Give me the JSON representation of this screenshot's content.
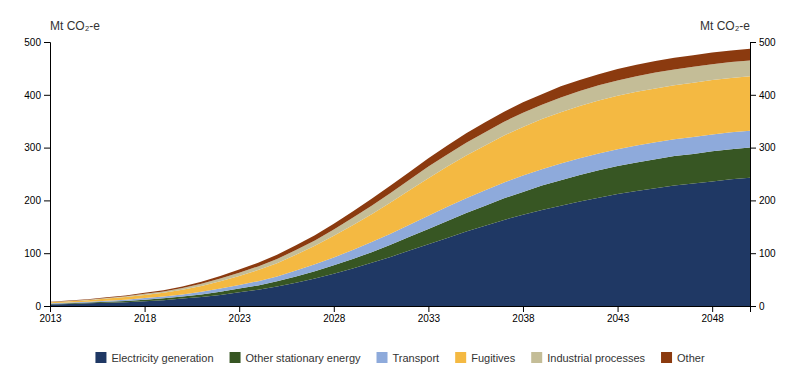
{
  "chart_data": {
    "type": "area",
    "stacked": true,
    "x": [
      2013,
      2014,
      2015,
      2016,
      2017,
      2018,
      2019,
      2020,
      2021,
      2022,
      2023,
      2024,
      2025,
      2026,
      2027,
      2028,
      2029,
      2030,
      2031,
      2032,
      2033,
      2034,
      2035,
      2036,
      2037,
      2038,
      2039,
      2040,
      2041,
      2042,
      2043,
      2044,
      2045,
      2046,
      2047,
      2048,
      2049,
      2050
    ],
    "series": [
      {
        "name": "Electricity generation",
        "color": "#1f3864",
        "values": [
          3,
          4,
          5,
          6,
          7,
          9,
          11,
          14,
          17,
          21,
          26,
          31,
          37,
          44,
          52,
          61,
          71,
          82,
          93,
          105,
          117,
          129,
          141,
          152,
          163,
          173,
          182,
          190,
          198,
          205,
          212,
          218,
          223,
          228,
          232,
          236,
          240,
          243
        ]
      },
      {
        "name": "Other stationary energy",
        "color": "#375623",
        "values": [
          1,
          1.2,
          1.5,
          2,
          2.5,
          3,
          3.5,
          4,
          5,
          6,
          7,
          8,
          10,
          12,
          14,
          16,
          18,
          20,
          23,
          26,
          29,
          32,
          35,
          38,
          41,
          43,
          46,
          48,
          50,
          52,
          53,
          54,
          55,
          56,
          56,
          57,
          57,
          57
        ]
      },
      {
        "name": "Transport",
        "color": "#8eaadb",
        "values": [
          1,
          1.2,
          1.5,
          2,
          2.5,
          3,
          3.5,
          4,
          5,
          6,
          7,
          8,
          9,
          11,
          13,
          15,
          17,
          19,
          21,
          23,
          25,
          27,
          28,
          29,
          30,
          31,
          31,
          32,
          32,
          32,
          32,
          32,
          32,
          32,
          32,
          32,
          32,
          32
        ]
      },
      {
        "name": "Fugitives",
        "color": "#f4b942",
        "values": [
          2,
          2.5,
          3,
          4,
          5,
          6,
          7,
          9,
          11,
          14,
          17,
          21,
          25,
          30,
          35,
          41,
          47,
          53,
          59,
          65,
          71,
          76,
          81,
          85,
          89,
          92,
          95,
          97,
          99,
          100,
          101,
          102,
          102,
          102,
          103,
          103,
          103,
          103
        ]
      },
      {
        "name": "Industrial processes",
        "color": "#c4bd97",
        "values": [
          0.5,
          0.7,
          1,
          1.2,
          1.5,
          2,
          2.5,
          3,
          4,
          5,
          6,
          7,
          8,
          9,
          10,
          12,
          14,
          16,
          18,
          20,
          22,
          23,
          24,
          25,
          26,
          27,
          27,
          28,
          28,
          29,
          29,
          29,
          30,
          30,
          30,
          30,
          30,
          30
        ]
      },
      {
        "name": "Other",
        "color": "#8b3a0f",
        "values": [
          0.5,
          0.7,
          1,
          1.2,
          1.5,
          2,
          2.5,
          3,
          4,
          5,
          6,
          7,
          8,
          9,
          10,
          11,
          12,
          13,
          14,
          15,
          16,
          17,
          18,
          19,
          19,
          20,
          20,
          21,
          21,
          21,
          22,
          22,
          22,
          22,
          22,
          22,
          22,
          22
        ]
      }
    ],
    "xlim": [
      2013,
      2050
    ],
    "xticks": [
      2013,
      2018,
      2023,
      2028,
      2033,
      2038,
      2043,
      2048
    ],
    "ylim": [
      0,
      500
    ],
    "yticks": [
      0,
      100,
      200,
      300,
      400,
      500
    ],
    "y2lim": [
      0,
      500
    ],
    "y2ticks": [
      0,
      100,
      200,
      300,
      400,
      500
    ],
    "ylabel": "Mt CO₂-e",
    "y2label": "Mt CO₂-e",
    "grid": false,
    "legend": "bottom"
  }
}
